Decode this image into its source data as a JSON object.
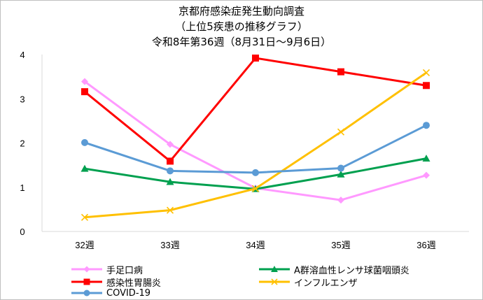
{
  "title_lines": [
    "京都府感染症発生動向調査",
    "（上位5疾患の推移グラフ）",
    "令和8年第36週（8月31日～9月6日）"
  ],
  "chart_data": {
    "type": "line",
    "categories": [
      "32週",
      "33週",
      "34週",
      "35週",
      "36週"
    ],
    "ylim": [
      0,
      4
    ],
    "yticks": [
      "0",
      "1",
      "2",
      "3",
      "4"
    ],
    "grid": false,
    "legend_position": "bottom",
    "series": [
      {
        "name": "手足口病",
        "color": "#ff99ff",
        "marker": "diamond",
        "values": [
          3.39,
          1.97,
          0.98,
          0.71,
          1.27
        ]
      },
      {
        "name": "A群溶血性レンサ球菌咽頭炎",
        "color": "#00a04f",
        "marker": "triangle",
        "values": [
          1.42,
          1.12,
          0.96,
          1.29,
          1.65
        ]
      },
      {
        "name": "感染性胃腸炎",
        "color": "#ff0000",
        "marker": "square",
        "values": [
          3.16,
          1.59,
          3.92,
          3.61,
          3.3
        ]
      },
      {
        "name": "インフルエンザ",
        "color": "#ffc000",
        "marker": "x",
        "values": [
          0.32,
          0.48,
          0.97,
          2.25,
          3.59
        ]
      },
      {
        "name": "COVID-19",
        "color": "#5b9bd5",
        "marker": "circle",
        "values": [
          2.01,
          1.37,
          1.33,
          1.43,
          2.4
        ]
      }
    ]
  }
}
